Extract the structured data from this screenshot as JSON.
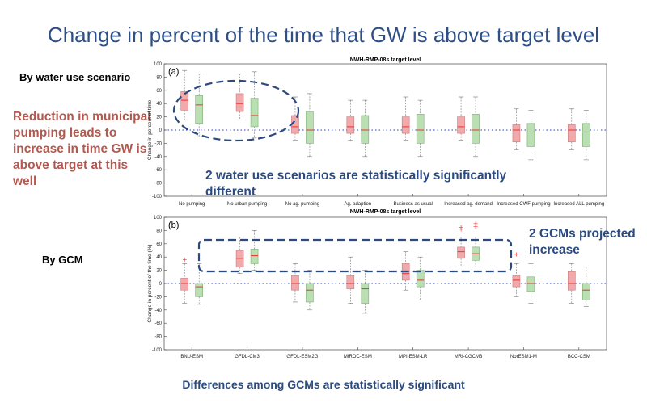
{
  "slide": {
    "title": "Change in percent of the time that GW is above target level",
    "row_label_1": "By water use scenario",
    "row_label_2": "By GCM",
    "note_1": "Reduction in municipal pumping leads  to increase in time GW is above target at this well",
    "figure_note_1": "2 water use scenarios are statistically significantly different",
    "figure_note_2": "2 GCMs projected increase",
    "footer": "Differences among GCMs are statistically significant"
  },
  "colors": {
    "title": "#2d4f86",
    "red_note": "#b4584f",
    "blue_note": "#2b4a7f",
    "box_red": "#f2a9ac",
    "box_green": "#b9dfb3",
    "median": "#e8352f",
    "zero_line": "#2a3fc9",
    "dashes": "#2b4a7f"
  },
  "chart_data": [
    {
      "type": "box",
      "title": "NWH-RMP-08s target level",
      "panel_label": "(a)",
      "ylabel": "Change in percent of time",
      "ylim": [
        -100,
        100
      ],
      "yticks": [
        -100,
        -80,
        -60,
        -40,
        -20,
        0,
        20,
        40,
        60,
        80,
        100
      ],
      "categories": [
        "No pumping",
        "No urban pumping",
        "No ag. pumping",
        "Ag. adaption",
        "Business as usual",
        "Increased ag. demand",
        "Increased CWF pumping",
        "Increased ALL pumping"
      ],
      "series": [
        {
          "color": "red",
          "boxes": [
            {
              "whisker_low": 15,
              "q1": 30,
              "median": 45,
              "q3": 58,
              "whisker_high": 90
            },
            {
              "whisker_low": 15,
              "q1": 28,
              "median": 40,
              "q3": 55,
              "whisker_high": 85
            },
            {
              "whisker_low": -15,
              "q1": -5,
              "median": 5,
              "q3": 22,
              "whisker_high": 50
            },
            {
              "whisker_low": -15,
              "q1": -5,
              "median": 5,
              "q3": 20,
              "whisker_high": 45
            },
            {
              "whisker_low": -15,
              "q1": -5,
              "median": 5,
              "q3": 20,
              "whisker_high": 50
            },
            {
              "whisker_low": -15,
              "q1": -5,
              "median": 5,
              "q3": 20,
              "whisker_high": 50
            },
            {
              "whisker_low": -30,
              "q1": -18,
              "median": 0,
              "q3": 8,
              "whisker_high": 32
            },
            {
              "whisker_low": -30,
              "q1": -18,
              "median": 0,
              "q3": 8,
              "whisker_high": 32
            }
          ]
        },
        {
          "color": "green",
          "boxes": [
            {
              "whisker_low": -10,
              "q1": 10,
              "median": 38,
              "q3": 52,
              "whisker_high": 85
            },
            {
              "whisker_low": -12,
              "q1": 5,
              "median": 22,
              "q3": 48,
              "whisker_high": 88
            },
            {
              "whisker_low": -40,
              "q1": -20,
              "median": 0,
              "q3": 28,
              "whisker_high": 55
            },
            {
              "whisker_low": -40,
              "q1": -20,
              "median": 0,
              "q3": 22,
              "whisker_high": 45
            },
            {
              "whisker_low": -40,
              "q1": -20,
              "median": 0,
              "q3": 24,
              "whisker_high": 45
            },
            {
              "whisker_low": -40,
              "q1": -20,
              "median": 0,
              "q3": 24,
              "whisker_high": 50
            },
            {
              "whisker_low": -45,
              "q1": -25,
              "median": -3,
              "q3": 10,
              "whisker_high": 30
            },
            {
              "whisker_low": -45,
              "q1": -25,
              "median": -3,
              "q3": 10,
              "whisker_high": 30
            }
          ]
        }
      ],
      "highlight": {
        "shape": "ellipse",
        "categories": [
          "No pumping",
          "No urban pumping"
        ]
      }
    },
    {
      "type": "box",
      "title": "NWH-RMP-08s target level",
      "panel_label": "(b)",
      "ylabel": "Change in percent of the time (%)",
      "ylim": [
        -100,
        100
      ],
      "yticks": [
        -100,
        -80,
        -60,
        -40,
        -20,
        0,
        20,
        40,
        60,
        80,
        100
      ],
      "categories": [
        "BNU-ESM",
        "GFDL-CM3",
        "GFDL-ESM2G",
        "MIROC-ESM",
        "MPI-ESM-LR",
        "MRI-CGCM3",
        "NorESM1-M",
        "BCC-CSM"
      ],
      "series": [
        {
          "color": "red",
          "boxes": [
            {
              "whisker_low": -30,
              "q1": -10,
              "median": 0,
              "q3": 8,
              "whisker_high": 30,
              "outliers": [
                36
              ]
            },
            {
              "whisker_low": 15,
              "q1": 25,
              "median": 38,
              "q3": 50,
              "whisker_high": 70
            },
            {
              "whisker_low": -28,
              "q1": -10,
              "median": 0,
              "q3": 12,
              "whisker_high": 30
            },
            {
              "whisker_low": -30,
              "q1": -8,
              "median": 0,
              "q3": 12,
              "whisker_high": 40
            },
            {
              "whisker_low": -10,
              "q1": 5,
              "median": 15,
              "q3": 30,
              "whisker_high": 48
            },
            {
              "whisker_low": 25,
              "q1": 38,
              "median": 48,
              "q3": 55,
              "whisker_high": 70,
              "outliers": [
                82,
                85
              ]
            },
            {
              "whisker_low": -20,
              "q1": -5,
              "median": 5,
              "q3": 12,
              "whisker_high": 30,
              "outliers": [
                44
              ]
            },
            {
              "whisker_low": -30,
              "q1": -10,
              "median": 0,
              "q3": 18,
              "whisker_high": 30
            }
          ]
        },
        {
          "color": "green",
          "boxes": [
            {
              "whisker_low": -32,
              "q1": -20,
              "median": -5,
              "q3": 0,
              "whisker_high": 30
            },
            {
              "whisker_low": 20,
              "q1": 30,
              "median": 42,
              "q3": 52,
              "whisker_high": 80
            },
            {
              "whisker_low": -40,
              "q1": -28,
              "median": -10,
              "q3": 0,
              "whisker_high": 20
            },
            {
              "whisker_low": -45,
              "q1": -30,
              "median": -8,
              "q3": 0,
              "whisker_high": 20
            },
            {
              "whisker_low": -25,
              "q1": -5,
              "median": 5,
              "q3": 20,
              "whisker_high": 40
            },
            {
              "whisker_low": 25,
              "q1": 35,
              "median": 45,
              "q3": 55,
              "whisker_high": 70,
              "outliers": [
                86,
                90
              ]
            },
            {
              "whisker_low": -30,
              "q1": -12,
              "median": 0,
              "q3": 10,
              "whisker_high": 30
            },
            {
              "whisker_low": -35,
              "q1": -25,
              "median": -10,
              "q3": 0,
              "whisker_high": 25
            }
          ]
        }
      ],
      "highlight": {
        "shape": "rounded-rectangle",
        "categories": [
          "GFDL-CM3",
          "MRI-CGCM3"
        ]
      }
    }
  ]
}
